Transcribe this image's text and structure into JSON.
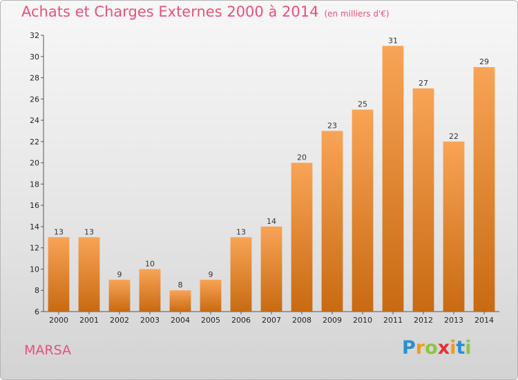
{
  "header": {
    "title": "Achats et Charges Externes 2000 à 2014",
    "subtitle": "(en milliers d'€)"
  },
  "footer": {
    "commune": "MARSA",
    "logo_letters": [
      {
        "ch": "P",
        "color": "#2a8fd6"
      },
      {
        "ch": "r",
        "color": "#f39a1b"
      },
      {
        "ch": "o",
        "color": "#8cc63f"
      },
      {
        "ch": "x",
        "color": "#e8303a"
      },
      {
        "ch": "i",
        "color": "#f39a1b"
      },
      {
        "ch": "t",
        "color": "#2a8fd6"
      },
      {
        "ch": "i",
        "color": "#8cc63f"
      }
    ]
  },
  "chart_data": {
    "type": "bar",
    "title": "Achats et Charges Externes 2000 à 2014",
    "unit": "(en milliers d'€)",
    "categories": [
      "2000",
      "2001",
      "2002",
      "2003",
      "2004",
      "2005",
      "2006",
      "2007",
      "2008",
      "2009",
      "2010",
      "2011",
      "2012",
      "2013",
      "2014"
    ],
    "values": [
      13,
      13,
      9,
      10,
      8,
      9,
      13,
      14,
      20,
      23,
      25,
      31,
      27,
      22,
      29
    ],
    "ylim": [
      6,
      32
    ],
    "yticks": [
      6,
      8,
      10,
      12,
      14,
      16,
      18,
      20,
      22,
      24,
      26,
      28,
      30,
      32
    ],
    "bar_color_top": "#f8a456",
    "bar_color_bottom": "#c86a12",
    "grid": false
  }
}
